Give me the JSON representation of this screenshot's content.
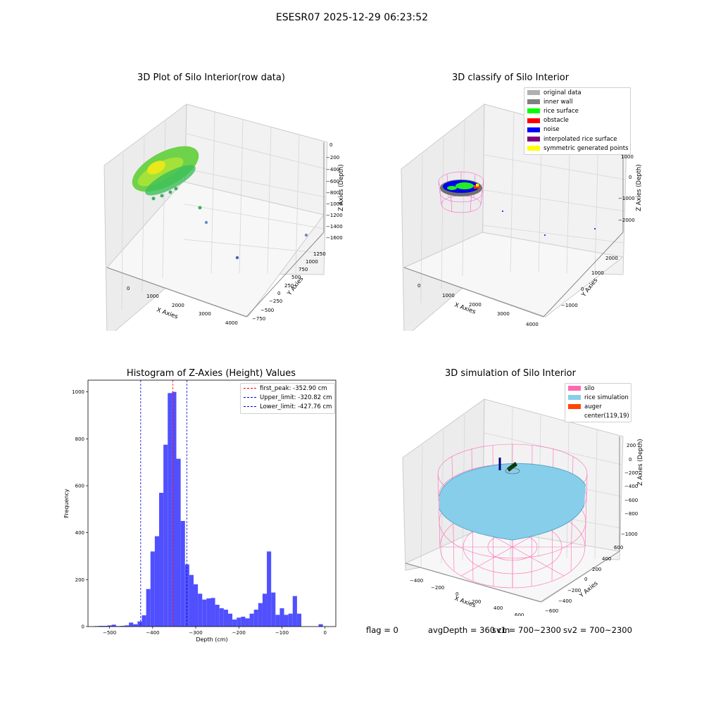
{
  "suptitle": "ESESR07 2025-12-29 06:23:52",
  "plot1": {
    "title": "3D Plot of Silo Interior(row data)",
    "xlabel": "X Axies",
    "ylabel": "Y Axies",
    "zlabel": "Z Axies (Depth)",
    "x_ticks": [
      "0",
      "1000",
      "2000",
      "3000",
      "4000"
    ],
    "y_ticks": [
      "1250",
      "1000",
      "750",
      "500",
      "250",
      "0",
      "−250",
      "−500",
      "−750"
    ],
    "z_ticks": [
      "0",
      "−200",
      "−400",
      "−600",
      "−800",
      "−1000",
      "−1200",
      "−1400",
      "−1600"
    ]
  },
  "plot2": {
    "title": "3D classify of Silo Interior",
    "xlabel": "X Axies",
    "ylabel": "Y Axies",
    "zlabel": "Z Axies (Depth)",
    "x_ticks": [
      "0",
      "1000",
      "2000",
      "3000",
      "4000"
    ],
    "y_ticks": [
      "2000",
      "1000",
      "0",
      "−1000"
    ],
    "z_ticks": [
      "1000",
      "0",
      "−1000",
      "−2000"
    ],
    "legend": [
      {
        "label": "original data",
        "color": "#b0b0b0"
      },
      {
        "label": "inner wall",
        "color": "#808080"
      },
      {
        "label": "rice surface",
        "color": "#00ff00"
      },
      {
        "label": "obstacle",
        "color": "#ff0000"
      },
      {
        "label": "noise",
        "color": "#0000ff"
      },
      {
        "label": "interpolated rice surface",
        "color": "#800080"
      },
      {
        "label": "symmetric generated points",
        "color": "#ffff00"
      }
    ]
  },
  "plot3": {
    "title": "Histogram of Z-Axies (Height) Values",
    "xlabel": "Depth (cm)",
    "ylabel": "Frequency"
  },
  "plot4": {
    "title": "3D simulation of Silo Interior",
    "xlabel": "X Axies",
    "ylabel": "Y Axies",
    "zlabel": "Z Axies (Depth)",
    "x_ticks": [
      "−400",
      "−200",
      "0",
      "200",
      "400",
      "600"
    ],
    "y_ticks": [
      "600",
      "400",
      "200",
      "0",
      "−200",
      "−400",
      "−600"
    ],
    "z_ticks": [
      "200",
      "0",
      "−200",
      "−400",
      "−600",
      "−800",
      "−1000"
    ],
    "legend": [
      {
        "label": "silo",
        "color": "#ff69b4"
      },
      {
        "label": "rice simulation",
        "color": "#87ceeb"
      },
      {
        "label": "auger",
        "color": "#ff4500"
      },
      {
        "label": "center(119,19)",
        "color": ""
      }
    ]
  },
  "status": {
    "flag": "flag = 0",
    "avg_depth": "avgDepth = 360 cm",
    "sv1": "sv1 = 700~2300",
    "sv2": "sv2 = 700~2300"
  },
  "chart_data": {
    "type": "bar",
    "title": "Histogram of Z-Axies (Height) Values",
    "xlabel": "Depth (cm)",
    "ylabel": "Frequency",
    "xlim": [
      -550,
      25
    ],
    "ylim": [
      0,
      1050
    ],
    "x_ticks": [
      -500,
      -400,
      -300,
      -200,
      -100,
      0
    ],
    "y_ticks": [
      0,
      200,
      400,
      600,
      800,
      1000
    ],
    "bar_color": "#5050ff",
    "bin_width": 10,
    "bin_starts": [
      -535,
      -525,
      -515,
      -505,
      -495,
      -485,
      -475,
      -465,
      -455,
      -445,
      -435,
      -425,
      -415,
      -405,
      -395,
      -385,
      -375,
      -365,
      -355,
      -345,
      -335,
      -325,
      -315,
      -305,
      -295,
      -285,
      -275,
      -265,
      -255,
      -245,
      -235,
      -225,
      -215,
      -205,
      -195,
      -185,
      -175,
      -165,
      -155,
      -145,
      -135,
      -125,
      -115,
      -105,
      -95,
      -85,
      -75,
      -65,
      -55,
      -45,
      -35,
      -25,
      -15,
      -5
    ],
    "values": [
      2,
      3,
      3,
      5,
      8,
      2,
      3,
      5,
      17,
      10,
      22,
      48,
      160,
      320,
      385,
      570,
      775,
      995,
      1000,
      715,
      450,
      265,
      220,
      180,
      140,
      115,
      120,
      122,
      93,
      78,
      72,
      55,
      30,
      38,
      42,
      35,
      55,
      72,
      100,
      140,
      320,
      145,
      50,
      78,
      50,
      55,
      130,
      55,
      0,
      0,
      0,
      0,
      10,
      0
    ],
    "lines": [
      {
        "label": "first_peak: -352.90 cm",
        "x": -352.9,
        "color": "#ff0000"
      },
      {
        "label": "Upper_limit: -320.82 cm",
        "x": -320.82,
        "color": "#0000cc"
      },
      {
        "label": "Lower_limit: -427.76 cm",
        "x": -427.76,
        "color": "#0000cc"
      }
    ]
  }
}
